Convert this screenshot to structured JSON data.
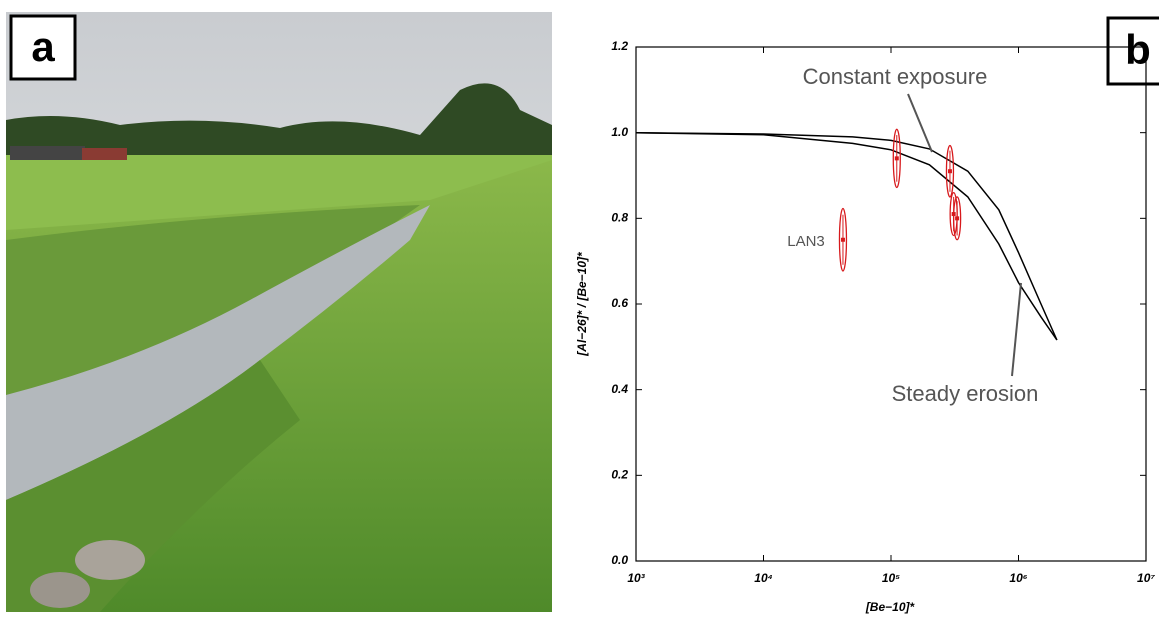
{
  "panels": [
    "a",
    "b"
  ],
  "chart_data": {
    "type": "scatter",
    "xlabel": "[Be−10]*",
    "ylabel": "[Al−26]* / [Be−10]*",
    "xscale": "log",
    "xlim": [
      1000,
      10000000
    ],
    "xticks": [
      {
        "value": 1000,
        "label": "10³"
      },
      {
        "value": 10000,
        "label": "10⁴"
      },
      {
        "value": 100000,
        "label": "10⁵"
      },
      {
        "value": 1000000,
        "label": "10⁶"
      },
      {
        "value": 10000000,
        "label": "10⁷"
      }
    ],
    "ylim": [
      0,
      1.2
    ],
    "yticks": [
      {
        "value": 0,
        "label": "0.0"
      },
      0.2,
      0.4,
      0.6,
      0.8,
      {
        "value": 1,
        "label": "1.0"
      },
      1.2
    ],
    "annotations": [
      "Constant exposure",
      "Steady erosion",
      "LAN3"
    ],
    "lines": [
      {
        "color": "#000000",
        "x": [
          1000,
          10000,
          50000,
          100000,
          200000,
          400000,
          700000,
          1000000,
          1500000,
          2000000
        ],
        "y": [
          1.0,
          0.997,
          0.99,
          0.982,
          0.962,
          0.91,
          0.82,
          0.72,
          0.6,
          0.516
        ]
      },
      {
        "color": "#000000",
        "x": [
          1000,
          10000,
          50000,
          100000,
          200000,
          400000,
          700000,
          1000000,
          1500000,
          2000000
        ],
        "y": [
          1.0,
          0.995,
          0.975,
          0.96,
          0.925,
          0.85,
          0.74,
          0.65,
          0.57,
          0.516
        ]
      }
    ],
    "points": {
      "color": "#d7191c",
      "x": [
        111000,
        290000,
        310000,
        330000,
        42000
      ],
      "y": [
        0.94,
        0.91,
        0.81,
        0.8,
        0.75
      ],
      "yerr": [
        0.068,
        0.06,
        0.05,
        0.05,
        0.073
      ]
    }
  }
}
